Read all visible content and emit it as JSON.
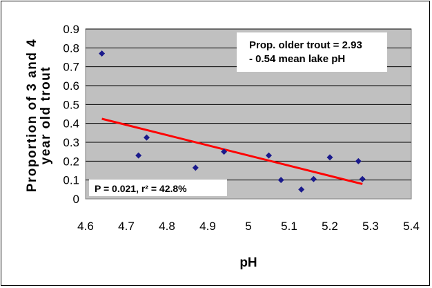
{
  "chart_data": {
    "type": "scatter",
    "xlabel": "pH",
    "ylabel_lines": [
      "Proportion of 3 and 4",
      "year old trout"
    ],
    "xlim": [
      4.6,
      5.4
    ],
    "ylim": [
      0,
      0.9
    ],
    "x_ticks": [
      "4.6",
      "4.7",
      "4.8",
      "4.9",
      "5",
      "5.1",
      "5.2",
      "5.3",
      "5.4"
    ],
    "y_ticks": [
      "0",
      "0.1",
      "0.2",
      "0.3",
      "0.4",
      "0.5",
      "0.6",
      "0.7",
      "0.8",
      "0.9"
    ],
    "grid": "horizontal",
    "points": [
      {
        "x": 4.64,
        "y": 0.77
      },
      {
        "x": 4.73,
        "y": 0.23
      },
      {
        "x": 4.75,
        "y": 0.325
      },
      {
        "x": 4.87,
        "y": 0.165
      },
      {
        "x": 4.94,
        "y": 0.25
      },
      {
        "x": 5.05,
        "y": 0.23
      },
      {
        "x": 5.08,
        "y": 0.1
      },
      {
        "x": 5.13,
        "y": 0.05
      },
      {
        "x": 5.16,
        "y": 0.105
      },
      {
        "x": 5.2,
        "y": 0.22
      },
      {
        "x": 5.27,
        "y": 0.2
      },
      {
        "x": 5.28,
        "y": 0.105
      }
    ],
    "trendline": {
      "intercept": 2.93,
      "slope": -0.54,
      "x_range": [
        4.64,
        5.28
      ]
    },
    "equation_lines": [
      "Prop. older trout = 2.93",
      "- 0.54 mean lake pH"
    ],
    "stats_label": "P = 0.021, r² = 42.8%",
    "colors": {
      "plot_bg": "#c0c0c0",
      "marker": "#1a1a8c",
      "trendline": "#ff0000",
      "grid": "#000000"
    }
  }
}
